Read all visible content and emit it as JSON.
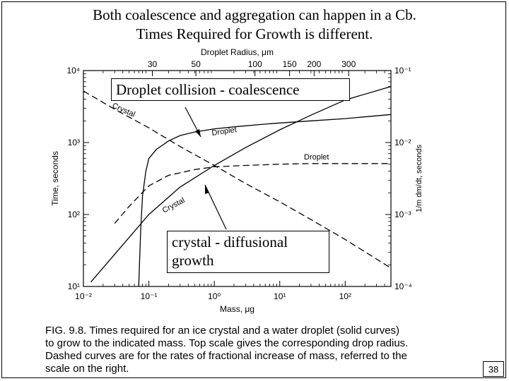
{
  "slide": {
    "title_line1": "Both coalescence and aggregation can happen in a Cb.",
    "title_line2": "Times Required for Growth is different.",
    "callout_top": "Droplet collision - coalescence",
    "callout_bottom_line1": "crystal - diffusional",
    "callout_bottom_line2": "growth",
    "page_number": "38"
  },
  "figure": {
    "caption_lines": [
      "FIG. 9.8. Times required for an ice crystal and a water droplet (solid curves)",
      "to grow to the indicated mass. Top scale gives the corresponding drop radius.",
      "Dashed curves are for the rates of fractional increase of mass, referred to the",
      "scale on the right."
    ]
  },
  "chart_data": {
    "type": "line",
    "xlabel": "Mass, μg",
    "ylabel_left": "Time, seconds",
    "ylabel_right": "1/m dm/dt, seconds",
    "top_axis_label": "Droplet Radius, μm",
    "x_scale": "log",
    "y_scale": "log",
    "xlim": [
      0.01,
      500
    ],
    "ylim_left": [
      10,
      10000
    ],
    "ylim_right": [
      0.0001,
      0.1
    ],
    "x_ticks": [
      0.01,
      0.1,
      1,
      10,
      100
    ],
    "x_tick_labels": [
      "10⁻²",
      "10⁻¹",
      "10⁰",
      "10¹",
      "10²"
    ],
    "y_left_ticks": [
      10,
      100,
      1000,
      10000
    ],
    "y_left_tick_labels": [
      "10¹",
      "10²",
      "10³",
      "10⁴"
    ],
    "y_right_ticks": [
      0.0001,
      0.001,
      0.01,
      0.1
    ],
    "y_right_tick_labels": [
      "10⁻⁴",
      "10⁻³",
      "10⁻²",
      "10⁻¹"
    ],
    "top_ticks": [
      30,
      50,
      100,
      150,
      200,
      300
    ],
    "top_tick_labels": [
      "30",
      "50",
      "100",
      "150",
      "200",
      "300"
    ],
    "grid": false,
    "series": [
      {
        "name": "Droplet",
        "style": "solid",
        "axis": "left",
        "x": [
          0.07,
          0.075,
          0.08,
          0.09,
          0.1,
          0.13,
          0.2,
          0.3,
          0.5,
          1,
          2,
          5,
          10,
          30,
          100,
          500
        ],
        "y": [
          10,
          60,
          180,
          400,
          600,
          800,
          1050,
          1250,
          1400,
          1550,
          1650,
          1780,
          1870,
          2000,
          2150,
          2450
        ]
      },
      {
        "name": "Crystal",
        "style": "solid",
        "axis": "left",
        "x": [
          0.013,
          0.03,
          0.1,
          0.3,
          1,
          3,
          10,
          30,
          100,
          500
        ],
        "y": [
          11.5,
          28,
          100,
          240,
          480,
          850,
          1500,
          2400,
          3900,
          6000
        ]
      },
      {
        "name": "Droplet",
        "style": "dashed",
        "axis": "right",
        "x": [
          0.03,
          0.05,
          0.1,
          0.2,
          0.5,
          1,
          3,
          10,
          30,
          100,
          500
        ],
        "y": [
          0.00075,
          0.0013,
          0.0025,
          0.0035,
          0.0042,
          0.0046,
          0.0048,
          0.005,
          0.0051,
          0.0051,
          0.0051
        ]
      },
      {
        "name": "Crystal",
        "style": "dashed",
        "axis": "right",
        "x": [
          0.01,
          0.03,
          0.1,
          0.3,
          1,
          3,
          10,
          30,
          100,
          500
        ],
        "y": [
          0.052,
          0.029,
          0.016,
          0.0088,
          0.0048,
          0.0027,
          0.0015,
          0.00085,
          0.00045,
          0.00018
        ]
      }
    ],
    "annotations": [
      {
        "text": "Droplet",
        "near_series": 0
      },
      {
        "text": "Crystal",
        "near_series": 1
      },
      {
        "text": "Droplet",
        "near_series": 2
      },
      {
        "text": "Crystal",
        "near_series": 3
      }
    ]
  }
}
